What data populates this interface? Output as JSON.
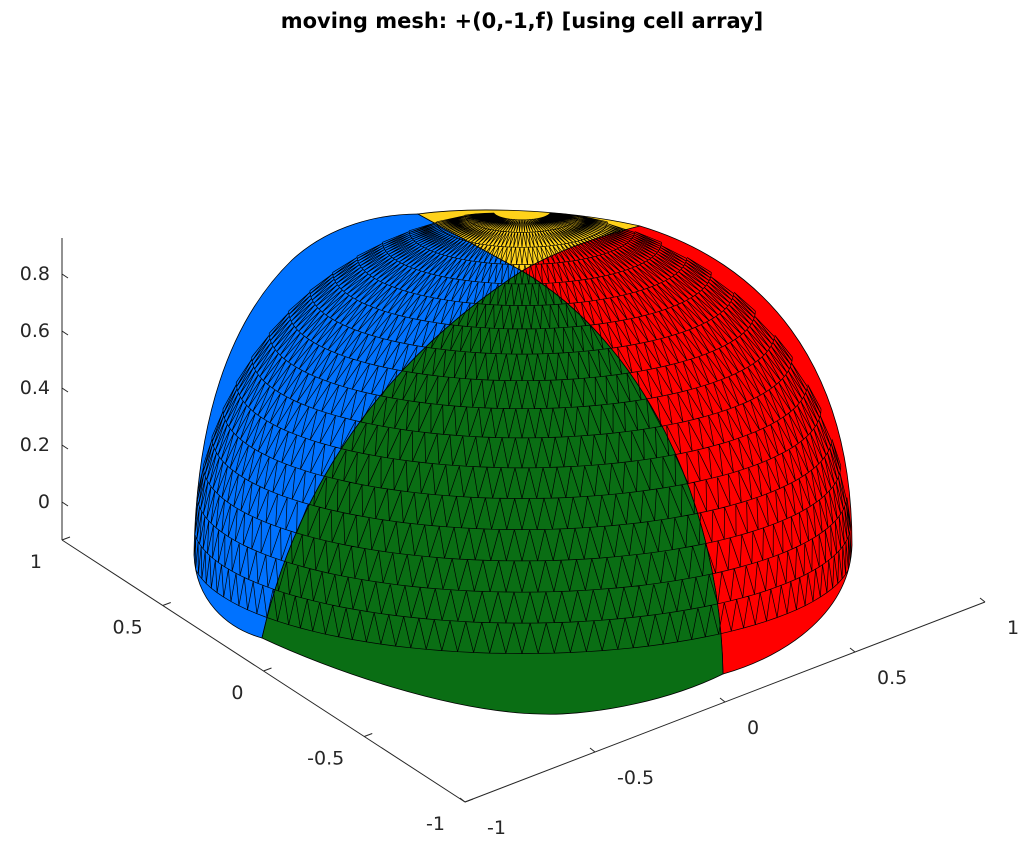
{
  "chart_data": {
    "type": "surface3d",
    "title": "moving mesh: +(0,-1,f) [using cell array]",
    "xlabel": "",
    "ylabel": "",
    "zlabel": "",
    "xlim": [
      -1,
      1
    ],
    "ylim": [
      -1,
      1
    ],
    "zlim": [
      -0.1,
      0.9
    ],
    "x_ticks": [
      "-1",
      "-0.5",
      "0",
      "0.5",
      "1"
    ],
    "y_ticks": [
      "-1",
      "-0.5",
      "0",
      "0.5",
      "1"
    ],
    "z_ticks": [
      "0",
      "0.2",
      "0.4",
      "0.6",
      "0.8"
    ],
    "surface": "unit hemisphere, triangulated mesh, partitioned into four colored patches",
    "patches": [
      {
        "color": "#0a6e14",
        "label": ""
      },
      {
        "color": "#ff0000",
        "label": ""
      },
      {
        "color": "#0072ff",
        "label": ""
      },
      {
        "color": "#ffd21a",
        "label": ""
      }
    ],
    "grid": false,
    "legend": "none"
  }
}
